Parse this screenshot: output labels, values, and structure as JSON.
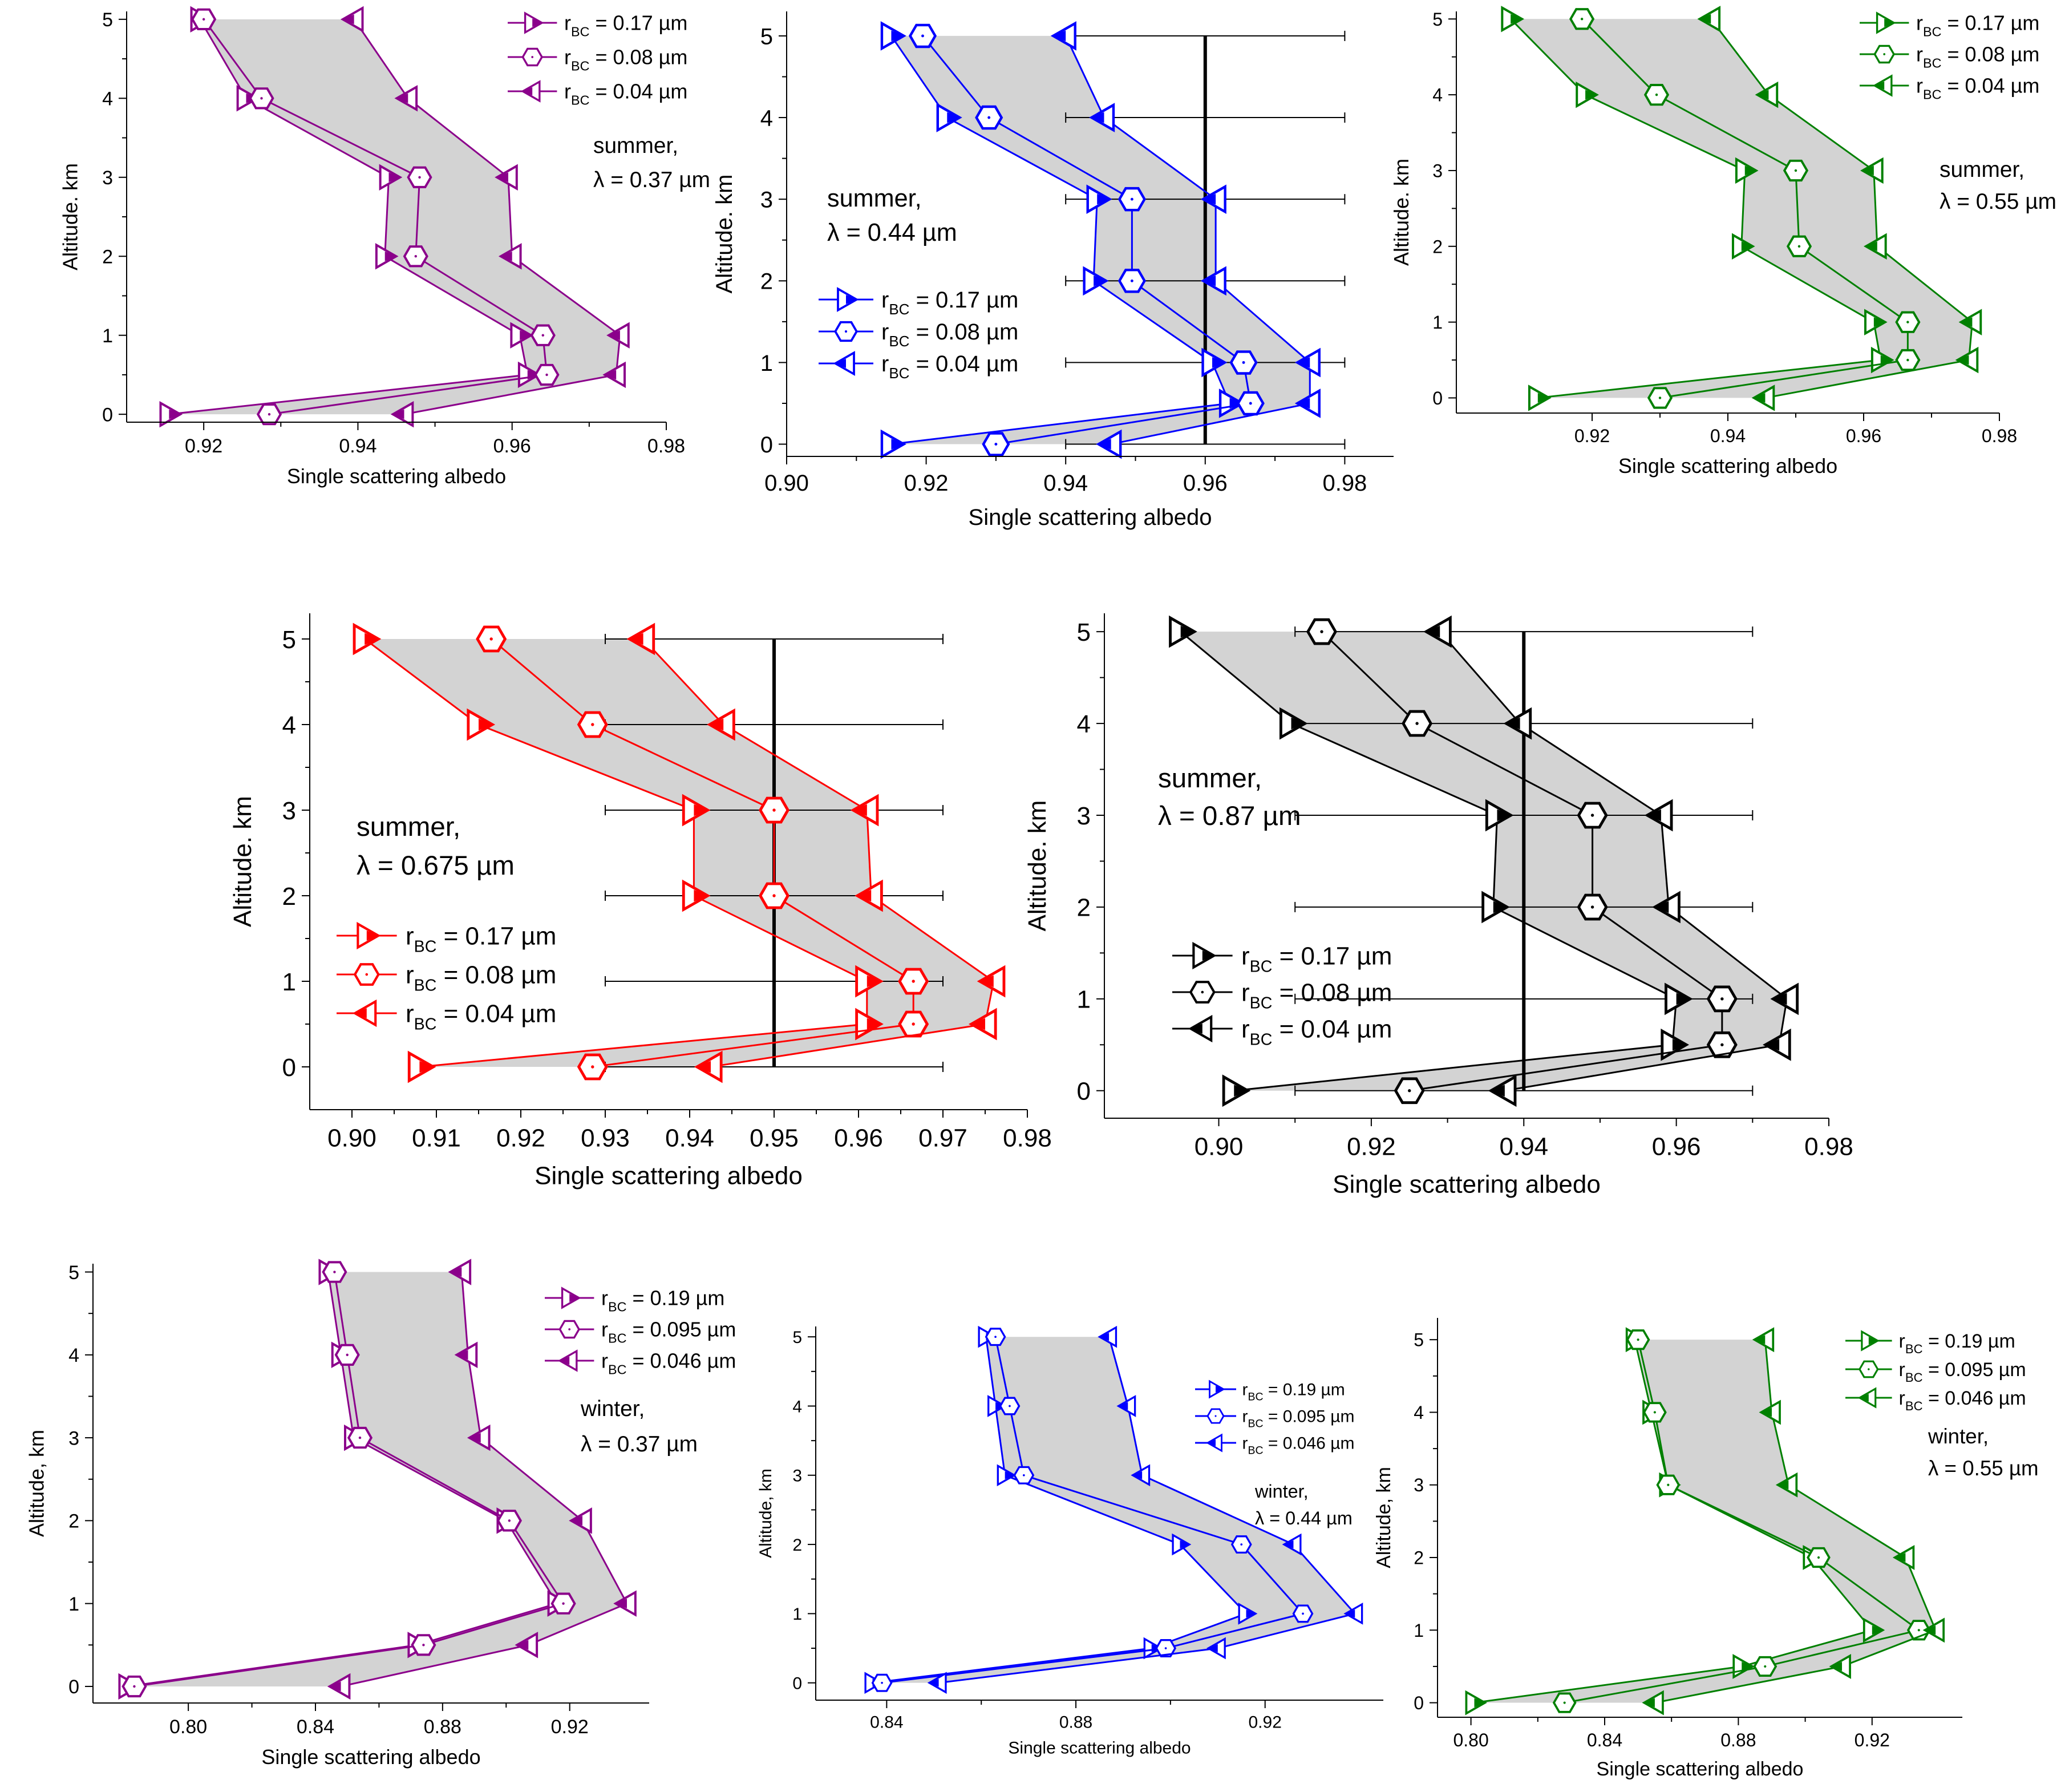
{
  "chart_data": [
    {
      "id": "summer-037",
      "type": "line",
      "season": "summer",
      "annotation_line1": "summer,",
      "annotation_line2": "λ = 0.37 µm",
      "color": "#8b008b",
      "xlabel": "Single scattering albedo",
      "ylabel": "Altitude. km",
      "xlim": [
        0.91,
        0.98
      ],
      "ylim": [
        -0.1,
        5.1
      ],
      "xticks": [
        "0.92",
        "0.94",
        "0.96",
        "0.98"
      ],
      "xtick_values": [
        0.92,
        0.94,
        0.96,
        0.98
      ],
      "yticks": [
        "0",
        "1",
        "2",
        "3",
        "4",
        "5"
      ],
      "ytick_values": [
        0,
        1,
        2,
        3,
        4,
        5
      ],
      "y": [
        0,
        0.5,
        1,
        2,
        3,
        4,
        5
      ],
      "series": [
        {
          "name": "rBC = 0.17 µm",
          "r": "0.17",
          "marker": "tri-right",
          "values": [
            0.9155,
            0.962,
            0.961,
            0.9435,
            0.944,
            0.9255,
            0.9195
          ]
        },
        {
          "name": "rBC = 0.08 µm",
          "r": "0.08",
          "marker": "hexagon",
          "values": [
            0.9285,
            0.9645,
            0.964,
            0.9475,
            0.948,
            0.9275,
            0.92
          ]
        },
        {
          "name": "rBC = 0.04 µm",
          "r": "0.04",
          "marker": "tri-left",
          "values": [
            0.946,
            0.9735,
            0.974,
            0.96,
            0.9595,
            0.9465,
            0.9395
          ]
        }
      ],
      "reference_line": null,
      "error_bars": null
    },
    {
      "id": "summer-044",
      "type": "line",
      "season": "summer",
      "annotation_line1": "summer,",
      "annotation_line2": "λ = 0.44 µm",
      "color": "#0000ff",
      "xlabel": "Single scattering albedo",
      "ylabel": "Altitude. km",
      "xlim": [
        0.9,
        0.987
      ],
      "ylim": [
        -0.15,
        5.3
      ],
      "xticks": [
        "0.90",
        "0.92",
        "0.94",
        "0.96",
        "0.98"
      ],
      "xtick_values": [
        0.9,
        0.92,
        0.94,
        0.96,
        0.98
      ],
      "yticks": [
        "0",
        "1",
        "2",
        "3",
        "4",
        "5"
      ],
      "ytick_values": [
        0,
        1,
        2,
        3,
        4,
        5
      ],
      "y": [
        0,
        0.5,
        1,
        2,
        3,
        4,
        5
      ],
      "series": [
        {
          "name": "rBC = 0.17 µm",
          "r": "0.17",
          "marker": "tri-right",
          "values": [
            0.915,
            0.9635,
            0.961,
            0.944,
            0.9445,
            0.923,
            0.915
          ]
        },
        {
          "name": "rBC = 0.08 µm",
          "r": "0.08",
          "marker": "hexagon",
          "values": [
            0.93,
            0.9665,
            0.9655,
            0.9495,
            0.9495,
            0.929,
            0.9195
          ]
        },
        {
          "name": "rBC = 0.04 µm",
          "r": "0.04",
          "marker": "tri-left",
          "values": [
            0.9465,
            0.975,
            0.975,
            0.9615,
            0.9615,
            0.9455,
            0.94
          ]
        }
      ],
      "reference_line": 0.96,
      "error_bars": {
        "center": 0.96,
        "half_width": 0.02,
        "y": [
          0,
          1,
          2,
          3,
          4,
          5
        ]
      }
    },
    {
      "id": "summer-055",
      "type": "line",
      "season": "summer",
      "annotation_line1": "summer,",
      "annotation_line2": "λ = 0.55 µm",
      "color": "#008000",
      "xlabel": "Single scattering albedo",
      "ylabel": "Altitude. km",
      "xlim": [
        0.9,
        0.98
      ],
      "ylim": [
        -0.2,
        5.1
      ],
      "xticks": [
        "0.92",
        "0.94",
        "0.96",
        "0.98"
      ],
      "xtick_values": [
        0.92,
        0.94,
        0.96,
        0.98
      ],
      "yticks": [
        "0",
        "1",
        "2",
        "3",
        "4",
        "5"
      ],
      "ytick_values": [
        0,
        1,
        2,
        3,
        4,
        5
      ],
      "y": [
        0,
        0.5,
        1,
        2,
        3,
        4,
        5
      ],
      "series": [
        {
          "name": "rBC = 0.17 µm",
          "r": "0.17",
          "marker": "tri-right",
          "values": [
            0.912,
            0.9625,
            0.9615,
            0.942,
            0.9425,
            0.919,
            0.908
          ]
        },
        {
          "name": "rBC = 0.08 µm",
          "r": "0.08",
          "marker": "hexagon",
          "values": [
            0.93,
            0.9665,
            0.9665,
            0.9505,
            0.95,
            0.9295,
            0.9185
          ]
        },
        {
          "name": "rBC = 0.04 µm",
          "r": "0.04",
          "marker": "tri-left",
          "values": [
            0.9455,
            0.9755,
            0.976,
            0.962,
            0.9615,
            0.946,
            0.9375
          ]
        }
      ],
      "reference_line": null,
      "error_bars": null
    },
    {
      "id": "summer-0675",
      "type": "line",
      "season": "summer",
      "annotation_line1": "summer,",
      "annotation_line2": "λ = 0.675 µm",
      "color": "#ff0000",
      "xlabel": "Single scattering albedo",
      "ylabel": "Altitude. km",
      "xlim": [
        0.895,
        0.98
      ],
      "ylim": [
        -0.5,
        5.3
      ],
      "xticks": [
        "0.90",
        "0.91",
        "0.92",
        "0.93",
        "0.94",
        "0.95",
        "0.96",
        "0.97",
        "0.98"
      ],
      "xtick_values": [
        0.9,
        0.91,
        0.92,
        0.93,
        0.94,
        0.95,
        0.96,
        0.97,
        0.98
      ],
      "yticks": [
        "0",
        "1",
        "2",
        "3",
        "4",
        "5"
      ],
      "ytick_values": [
        0,
        1,
        2,
        3,
        4,
        5
      ],
      "y": [
        0,
        0.5,
        1,
        2,
        3,
        4,
        5
      ],
      "series": [
        {
          "name": "rBC = 0.17 µm",
          "r": "0.17",
          "marker": "tri-right",
          "values": [
            0.908,
            0.961,
            0.961,
            0.9405,
            0.9405,
            0.915,
            0.9015
          ]
        },
        {
          "name": "rBC = 0.08 µm",
          "r": "0.08",
          "marker": "hexagon",
          "values": [
            0.9285,
            0.9665,
            0.9665,
            0.95,
            0.95,
            0.9285,
            0.9165
          ]
        },
        {
          "name": "rBC = 0.04 µm",
          "r": "0.04",
          "marker": "tri-left",
          "values": [
            0.9425,
            0.975,
            0.976,
            0.9615,
            0.961,
            0.944,
            0.9345
          ]
        }
      ],
      "reference_line": 0.95,
      "error_bars": {
        "center": 0.95,
        "half_width": 0.02,
        "y": [
          0,
          1,
          2,
          3,
          4,
          5
        ]
      }
    },
    {
      "id": "summer-087",
      "type": "line",
      "season": "summer",
      "annotation_line1": "summer,",
      "annotation_line2": "λ = 0.87 µm",
      "color": "#000000",
      "xlabel": "Single scattering albedo",
      "ylabel": "Altitude. km",
      "xlim": [
        0.885,
        0.98
      ],
      "ylim": [
        -0.3,
        5.2
      ],
      "xticks": [
        "0.90",
        "0.92",
        "0.94",
        "0.96",
        "0.98"
      ],
      "xtick_values": [
        0.9,
        0.92,
        0.94,
        0.96,
        0.98
      ],
      "yticks": [
        "0",
        "1",
        "2",
        "3",
        "4",
        "5"
      ],
      "ytick_values": [
        0,
        1,
        2,
        3,
        4,
        5
      ],
      "y": [
        0,
        0.5,
        1,
        2,
        3,
        4,
        5
      ],
      "series": [
        {
          "name": "rBC = 0.17 µm",
          "r": "0.17",
          "marker": "tri-right",
          "values": [
            0.902,
            0.9595,
            0.96,
            0.936,
            0.9365,
            0.9095,
            0.895
          ]
        },
        {
          "name": "rBC = 0.08 µm",
          "r": "0.08",
          "marker": "hexagon",
          "values": [
            0.925,
            0.966,
            0.966,
            0.949,
            0.949,
            0.926,
            0.9135
          ]
        },
        {
          "name": "rBC = 0.04 µm",
          "r": "0.04",
          "marker": "tri-left",
          "values": [
            0.9375,
            0.9735,
            0.9745,
            0.959,
            0.958,
            0.9395,
            0.929
          ]
        }
      ],
      "reference_line": 0.94,
      "error_bars": {
        "center": 0.94,
        "half_width": 0.03,
        "y": [
          0,
          1,
          2,
          3,
          4,
          5
        ]
      }
    },
    {
      "id": "winter-037",
      "type": "line",
      "season": "winter",
      "annotation_line1": "winter,",
      "annotation_line2": "λ = 0.37 µm",
      "color": "#8b008b",
      "xlabel": "Single scattering albedo",
      "ylabel": "Altitude, km",
      "xlim": [
        0.77,
        0.945
      ],
      "ylim": [
        -0.2,
        5.1
      ],
      "xticks": [
        "0.80",
        "0.84",
        "0.88",
        "0.92"
      ],
      "xtick_values": [
        0.8,
        0.84,
        0.88,
        0.92
      ],
      "yticks": [
        "0",
        "1",
        "2",
        "3",
        "4",
        "5"
      ],
      "ytick_values": [
        0,
        1,
        2,
        3,
        4,
        5
      ],
      "y": [
        0,
        0.5,
        1,
        2,
        3,
        4,
        5
      ],
      "series": [
        {
          "name": "rBC = 0.19 µm",
          "r": "0.19",
          "marker": "tri-right",
          "values": [
            0.781,
            0.872,
            0.916,
            0.9,
            0.852,
            0.848,
            0.844
          ]
        },
        {
          "name": "rBC = 0.095 µm",
          "r": "0.095",
          "marker": "hexagon",
          "values": [
            0.783,
            0.874,
            0.918,
            0.901,
            0.854,
            0.85,
            0.846
          ]
        },
        {
          "name": "rBC = 0.046 µm",
          "r": "0.046",
          "marker": "tri-left",
          "values": [
            0.848,
            0.907,
            0.938,
            0.924,
            0.892,
            0.888,
            0.886
          ]
        }
      ],
      "reference_line": null,
      "error_bars": null
    },
    {
      "id": "winter-044",
      "type": "line",
      "season": "winter",
      "annotation_line1": "winter,",
      "annotation_line2": "λ = 0.44 µm",
      "color": "#0000ff",
      "xlabel": "Single scattering albedo",
      "ylabel": "Altitude, km",
      "xlim": [
        0.825,
        0.945
      ],
      "ylim": [
        -0.25,
        5.15
      ],
      "xticks": [
        "0.84",
        "0.88",
        "0.92"
      ],
      "xtick_values": [
        0.84,
        0.88,
        0.92
      ],
      "yticks": [
        "0",
        "1",
        "2",
        "3",
        "4",
        "5"
      ],
      "ytick_values": [
        0,
        1,
        2,
        3,
        4,
        5
      ],
      "y": [
        0,
        0.5,
        1,
        2,
        3,
        4,
        5
      ],
      "series": [
        {
          "name": "rBC = 0.19 µm",
          "r": "0.19",
          "marker": "tri-right",
          "values": [
            0.837,
            0.896,
            0.916,
            0.902,
            0.865,
            0.863,
            0.861
          ]
        },
        {
          "name": "rBC = 0.095 µm",
          "r": "0.095",
          "marker": "hexagon",
          "values": [
            0.839,
            0.899,
            0.928,
            0.915,
            0.869,
            0.866,
            0.863
          ]
        },
        {
          "name": "rBC = 0.046 µm",
          "r": "0.046",
          "marker": "tri-left",
          "values": [
            0.851,
            0.91,
            0.939,
            0.926,
            0.894,
            0.891,
            0.887
          ]
        }
      ],
      "reference_line": null,
      "error_bars": null
    },
    {
      "id": "winter-055",
      "type": "line",
      "season": "winter",
      "annotation_line1": "winter,",
      "annotation_line2": "λ = 0.55 µm",
      "color": "#008000",
      "xlabel": "Single scattering albedo",
      "ylabel": "Altitude, km",
      "xlim": [
        0.79,
        0.947
      ],
      "ylim": [
        -0.2,
        5.3
      ],
      "xticks": [
        "0.80",
        "0.84",
        "0.88",
        "0.92"
      ],
      "xtick_values": [
        0.8,
        0.84,
        0.88,
        0.92
      ],
      "yticks": [
        "0",
        "1",
        "2",
        "3",
        "4",
        "5"
      ],
      "ytick_values": [
        0,
        1,
        2,
        3,
        4,
        5
      ],
      "y": [
        0,
        0.5,
        1,
        2,
        3,
        4,
        5
      ],
      "series": [
        {
          "name": "rBC = 0.19 µm",
          "r": "0.19",
          "marker": "tri-right",
          "values": [
            0.801,
            0.881,
            0.92,
            0.902,
            0.859,
            0.854,
            0.849
          ]
        },
        {
          "name": "rBC = 0.095 µm",
          "r": "0.095",
          "marker": "hexagon",
          "values": [
            0.828,
            0.888,
            0.934,
            0.904,
            0.859,
            0.855,
            0.85
          ]
        },
        {
          "name": "rBC = 0.046 µm",
          "r": "0.046",
          "marker": "tri-left",
          "values": [
            0.855,
            0.911,
            0.939,
            0.93,
            0.895,
            0.89,
            0.888
          ]
        }
      ],
      "reference_line": null,
      "error_bars": null
    }
  ]
}
